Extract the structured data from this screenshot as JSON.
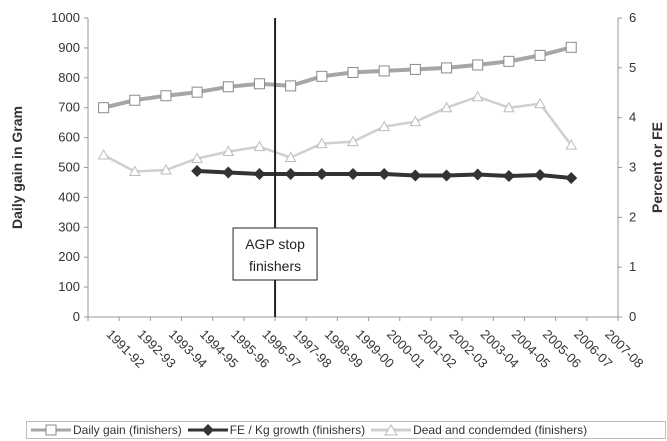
{
  "chart_data": {
    "type": "line",
    "categories": [
      "1991-92",
      "1992-93",
      "1993-94",
      "1994-95",
      "1995-96",
      "1996-97",
      "1997-98",
      "1998-99",
      "1999-00",
      "2000-01",
      "2001-02",
      "2002-03",
      "2003-04",
      "2004-05",
      "2005-06",
      "2006-07",
      "2007-08"
    ],
    "ylabel_left": "Daily gain in Gram",
    "ylabel_right": "Percent or FE",
    "ylim_left": [
      0,
      1000
    ],
    "ylim_right": [
      0,
      6
    ],
    "yticks_left": [
      "0",
      "100",
      "200",
      "300",
      "400",
      "500",
      "600",
      "700",
      "800",
      "900",
      "1000"
    ],
    "yticks_right": [
      "0",
      "1",
      "2",
      "3",
      "4",
      "5",
      "6"
    ],
    "grid": false,
    "legend_position": "bottom",
    "series": [
      {
        "name": "Daily gain (finishers)",
        "axis": "left",
        "color": "#a6a6a6",
        "marker": "square",
        "values": [
          700,
          725,
          740,
          752,
          770,
          780,
          773,
          805,
          818,
          823,
          828,
          833,
          843,
          855,
          875,
          902,
          null
        ]
      },
      {
        "name": "FE / Kg growth (finishers)",
        "axis": "right",
        "color": "#333333",
        "marker": "diamond",
        "values": [
          null,
          null,
          null,
          2.93,
          2.9,
          2.87,
          2.87,
          2.87,
          2.87,
          2.87,
          2.84,
          2.84,
          2.86,
          2.83,
          2.85,
          2.79,
          null
        ]
      },
      {
        "name": "Dead and condemded (finishers)",
        "axis": "right",
        "color": "#cfcfcf",
        "marker": "triangle",
        "values": [
          3.25,
          2.92,
          2.95,
          3.18,
          3.32,
          3.42,
          3.2,
          3.48,
          3.52,
          3.82,
          3.92,
          4.2,
          4.42,
          4.2,
          4.28,
          3.45,
          null
        ]
      }
    ],
    "annotation": {
      "lines": [
        "AGP stop",
        "finishers"
      ],
      "category": "1996-97"
    }
  }
}
